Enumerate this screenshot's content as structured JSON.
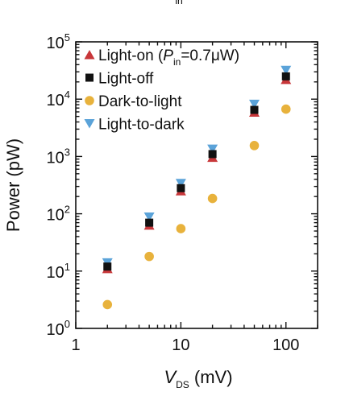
{
  "chart_data": {
    "type": "scatter",
    "xscale": "log",
    "yscale": "log",
    "xlim": [
      1,
      200
    ],
    "ylim": [
      1,
      100000
    ],
    "grid": false,
    "legend_position": "top-left",
    "xlabel": {
      "main": "V",
      "sub": "DS",
      "rest": " (mV)"
    },
    "ylabel": "Power (pW)",
    "x_ticks": [
      {
        "value": 1,
        "label": "1"
      },
      {
        "value": 10,
        "label": "10"
      },
      {
        "value": 100,
        "label": "100"
      }
    ],
    "y_ticks": [
      {
        "value": 1,
        "base": "10",
        "exp": "0"
      },
      {
        "value": 10,
        "base": "10",
        "exp": "1"
      },
      {
        "value": 100,
        "base": "10",
        "exp": "2"
      },
      {
        "value": 1000,
        "base": "10",
        "exp": "3"
      },
      {
        "value": 10000,
        "base": "10",
        "exp": "4"
      },
      {
        "value": 100000,
        "base": "10",
        "exp": "5"
      }
    ],
    "x": [
      2,
      5,
      10,
      20,
      50,
      100
    ],
    "series": [
      {
        "name": "Light-on (Pin=0.7μW)",
        "legend": {
          "pre": "Light-on (",
          "italic": "P",
          "sub": "in",
          "post": "=0.7μW)"
        },
        "marker": "triangle-up",
        "color": "#c8373a",
        "values": [
          11,
          63,
          250,
          960,
          5900,
          22000
        ]
      },
      {
        "name": "Light-off",
        "legend": {
          "pre": "Light-off"
        },
        "marker": "square",
        "color": "#111111",
        "values": [
          12,
          70,
          280,
          1100,
          6500,
          25000
        ]
      },
      {
        "name": "Dark-to-light",
        "legend": {
          "pre": "Dark-to-light"
        },
        "marker": "circle",
        "color": "#e8b23c",
        "values": [
          2.6,
          18,
          55,
          185,
          1550,
          6700
        ]
      },
      {
        "name": "Light-to-dark",
        "legend": {
          "pre": "Light-to-dark"
        },
        "marker": "triangle-down",
        "color": "#5ba3d9",
        "values": [
          14,
          88,
          340,
          1350,
          8200,
          32000
        ]
      }
    ],
    "top_fragment": {
      "sub": "in"
    }
  }
}
